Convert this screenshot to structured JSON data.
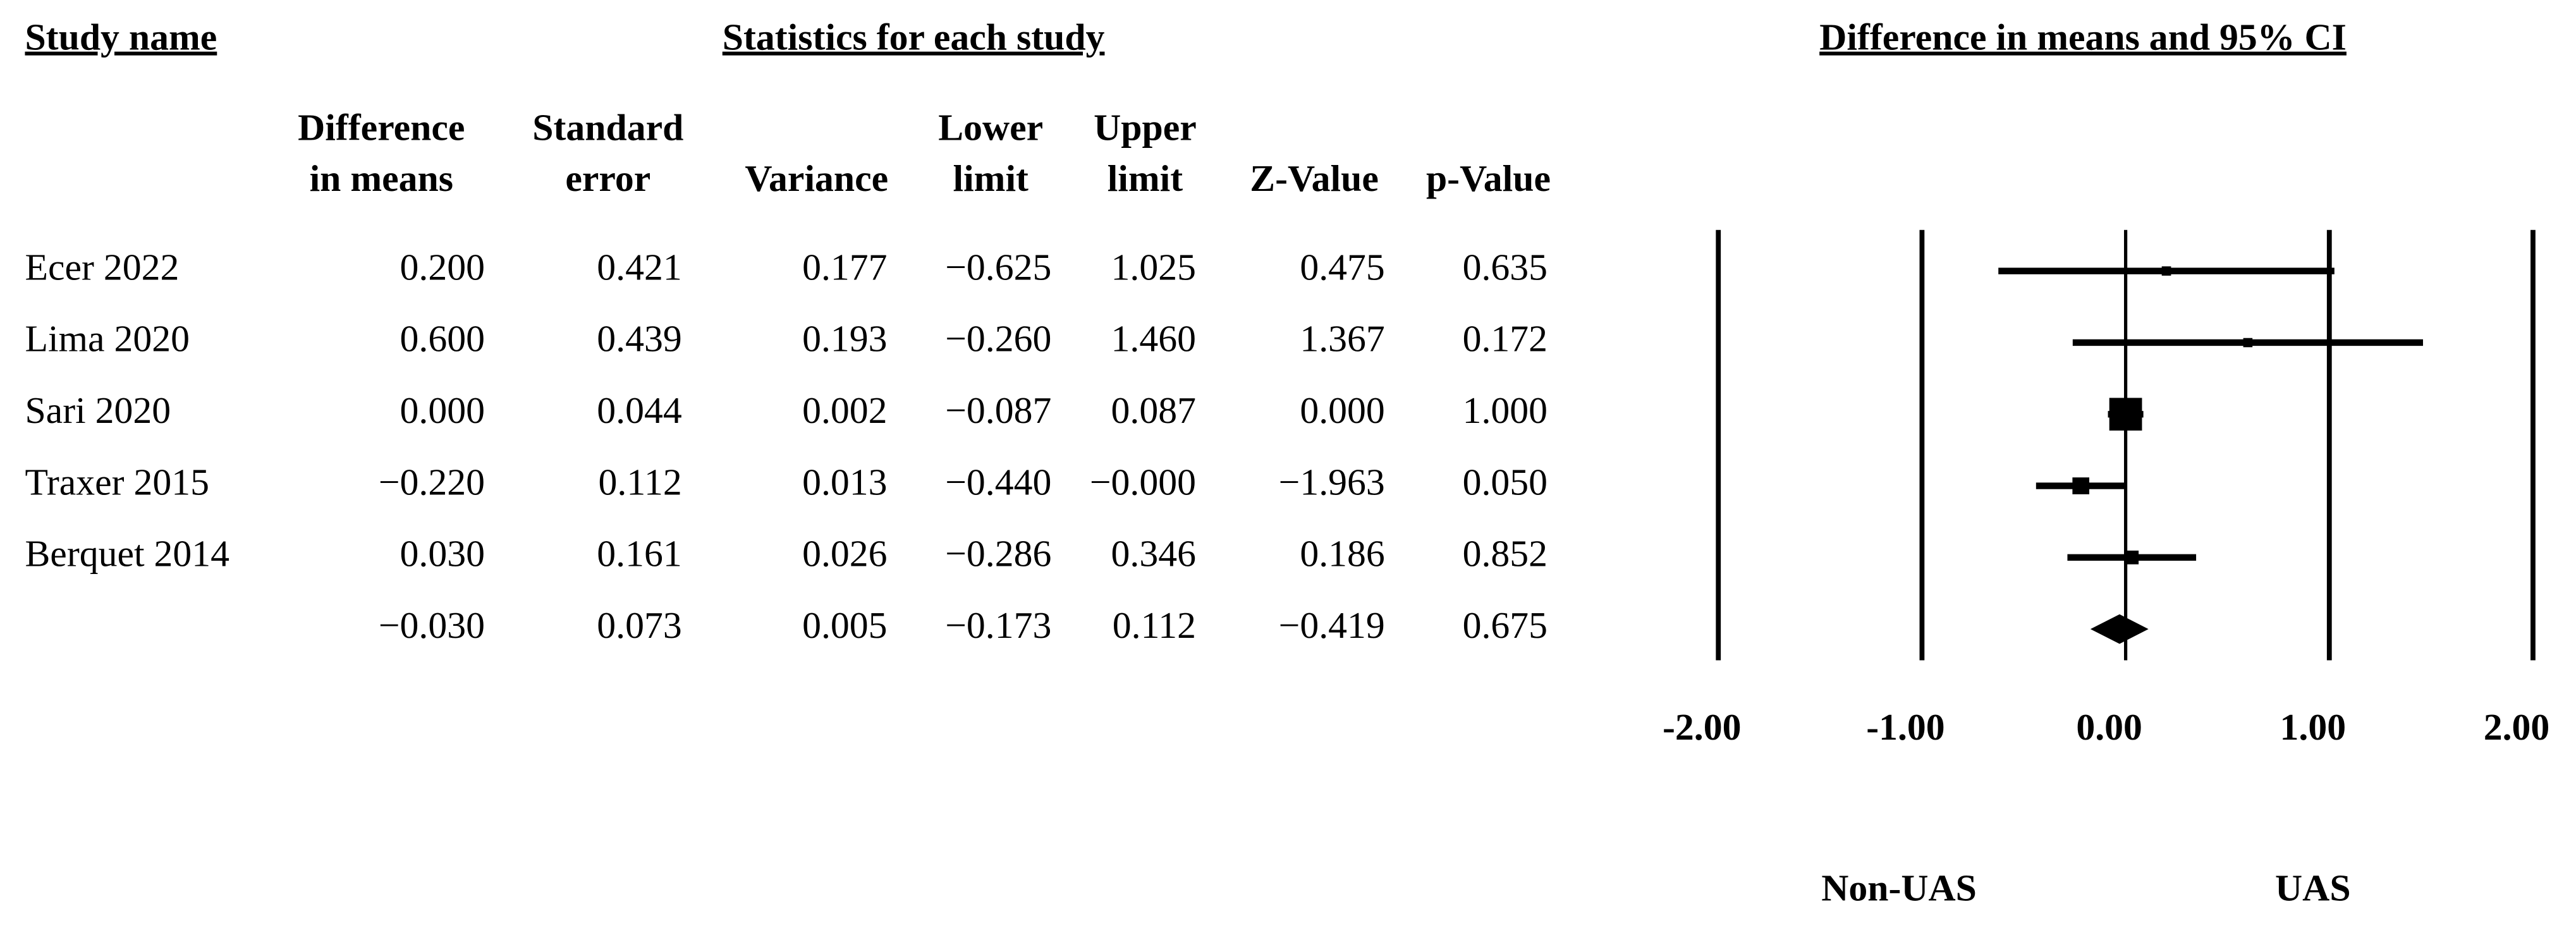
{
  "chart_data": {
    "type": "forest",
    "headings": {
      "study": "Study name",
      "statistics": "Statistics for each study",
      "plot": "Difference in means and 95% CI"
    },
    "studies": [
      "Ecer 2022",
      "Lima 2020",
      "Sari 2020",
      "Traxer 2015",
      "Berquet 2014",
      null
    ],
    "columns": [
      {
        "name": [
          "Difference",
          "in means"
        ],
        "values": [
          0.2,
          0.6,
          0,
          -0.22,
          0.03,
          -0.03
        ],
        "value_labels": [
          "0.200",
          "0.600",
          "0.000",
          "−0.220",
          "0.030",
          "−0.030"
        ]
      },
      {
        "name": [
          "Standard",
          "error"
        ],
        "values": [
          0.421,
          0.439,
          0.044,
          0.112,
          0.161,
          0.073
        ],
        "value_labels": [
          "0.421",
          "0.439",
          "0.044",
          "0.112",
          "0.161",
          "0.073"
        ]
      },
      {
        "name": [
          "Variance"
        ],
        "values": [
          0.177,
          0.193,
          0.002,
          0.013,
          0.026,
          0.005
        ],
        "value_labels": [
          "0.177",
          "0.193",
          "0.002",
          "0.013",
          "0.026",
          "0.005"
        ]
      },
      {
        "name": [
          "Lower",
          "limit"
        ],
        "values": [
          -0.625,
          -0.26,
          -0.087,
          -0.44,
          -0.286,
          -0.173
        ],
        "value_labels": [
          "−0.625",
          "−0.260",
          "−0.087",
          "−0.440",
          "−0.286",
          "−0.173"
        ]
      },
      {
        "name": [
          "Upper",
          "limit"
        ],
        "values": [
          1.025,
          1.46,
          0.087,
          0,
          0.346,
          0.112
        ],
        "value_labels": [
          "1.025",
          "1.460",
          "0.087",
          "−0.000",
          "0.346",
          "0.112"
        ]
      },
      {
        "name": [
          "Z-Value"
        ],
        "values": [
          0.475,
          1.367,
          0,
          -1.963,
          0.186,
          -0.419
        ],
        "value_labels": [
          "0.475",
          "1.367",
          "0.000",
          "−1.963",
          "0.186",
          "−0.419"
        ]
      },
      {
        "name": [
          "p-Value"
        ],
        "values": [
          0.635,
          0.172,
          1,
          0.05,
          0.852,
          0.675
        ],
        "value_labels": [
          "0.635",
          "0.172",
          "1.000",
          "0.050",
          "0.852",
          "0.675"
        ]
      }
    ],
    "xlim": [
      -2,
      2
    ],
    "xticks": [
      {
        "value": -2,
        "label": "-2.00"
      },
      {
        "value": -1,
        "label": "-1.00"
      },
      {
        "value": 0,
        "label": "0.00"
      },
      {
        "value": 1,
        "label": "1.00"
      },
      {
        "value": 2,
        "label": "2.00"
      }
    ],
    "x_labels": [
      "Non-UAS",
      "UAS"
    ],
    "color": "#000000"
  }
}
